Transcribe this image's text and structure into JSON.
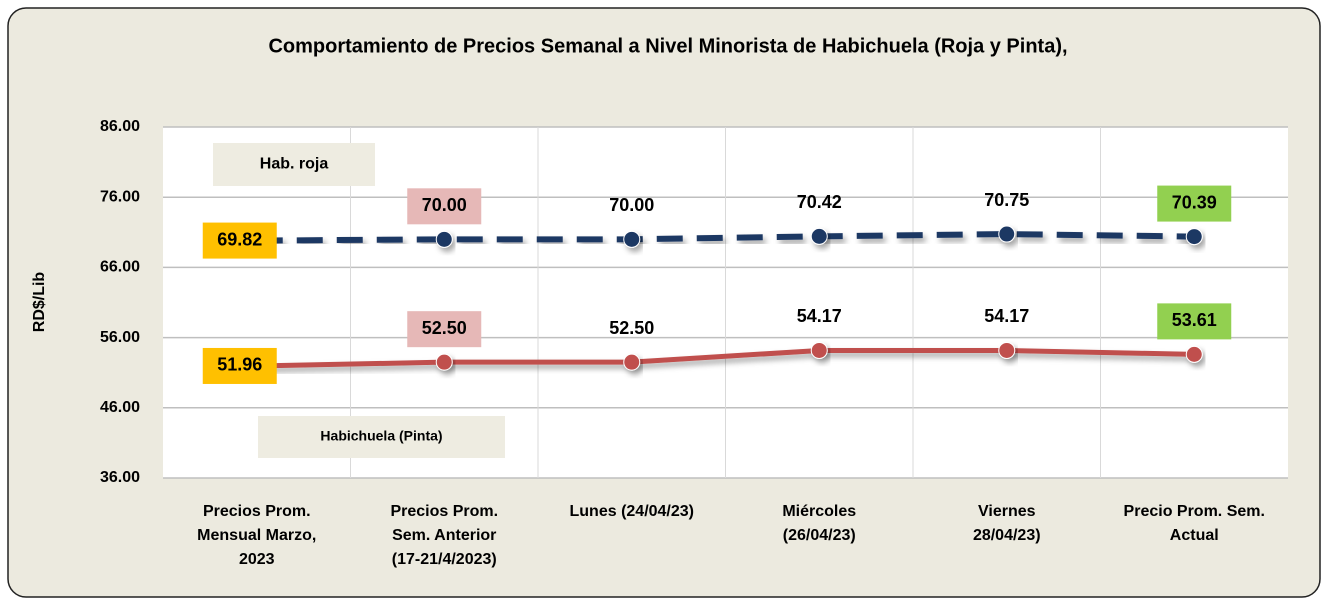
{
  "chart_data": {
    "type": "line",
    "title": "Comportamiento de Precios Semanal a Nivel Minorista de Habichuela (Roja  y Pinta),",
    "y_label": "RD$/Lib",
    "categories": [
      [
        "Precios Prom.",
        "Mensual Marzo,",
        "2023"
      ],
      [
        "Precios Prom.",
        "Sem. Anterior",
        "(17-21/4/2023)"
      ],
      [
        "Lunes  (24/04/23)"
      ],
      [
        "Miércoles",
        "(26/04/23)"
      ],
      [
        "Viernes",
        "28/04/23)"
      ],
      [
        "Precio Prom. Sem.",
        "Actual"
      ]
    ],
    "series": [
      {
        "name": "Hab. roja",
        "color": "#1f3864",
        "dashed": true,
        "values": [
          69.82,
          70.0,
          70.0,
          70.42,
          70.75,
          70.39
        ],
        "value_labels": [
          "69.82",
          "70.00",
          "70.00",
          "70.42",
          "70.75",
          "70.39"
        ]
      },
      {
        "name": "Habichuela (Pinta)",
        "color": "#c0504d",
        "dashed": false,
        "values": [
          51.96,
          52.5,
          52.5,
          54.17,
          54.17,
          53.61
        ],
        "value_labels": [
          "51.96",
          "52.50",
          "52.50",
          "54.17",
          "54.17",
          "53.61"
        ]
      }
    ],
    "ylim": [
      36,
      86
    ],
    "yticks": [
      {
        "value": 36,
        "label": "36.00"
      },
      {
        "value": 46,
        "label": "46.00"
      },
      {
        "value": 56,
        "label": "56.00"
      },
      {
        "value": 66,
        "label": "66.00"
      },
      {
        "value": 76,
        "label": "76.00"
      },
      {
        "value": 86,
        "label": "86.00"
      }
    ],
    "grid": true
  }
}
